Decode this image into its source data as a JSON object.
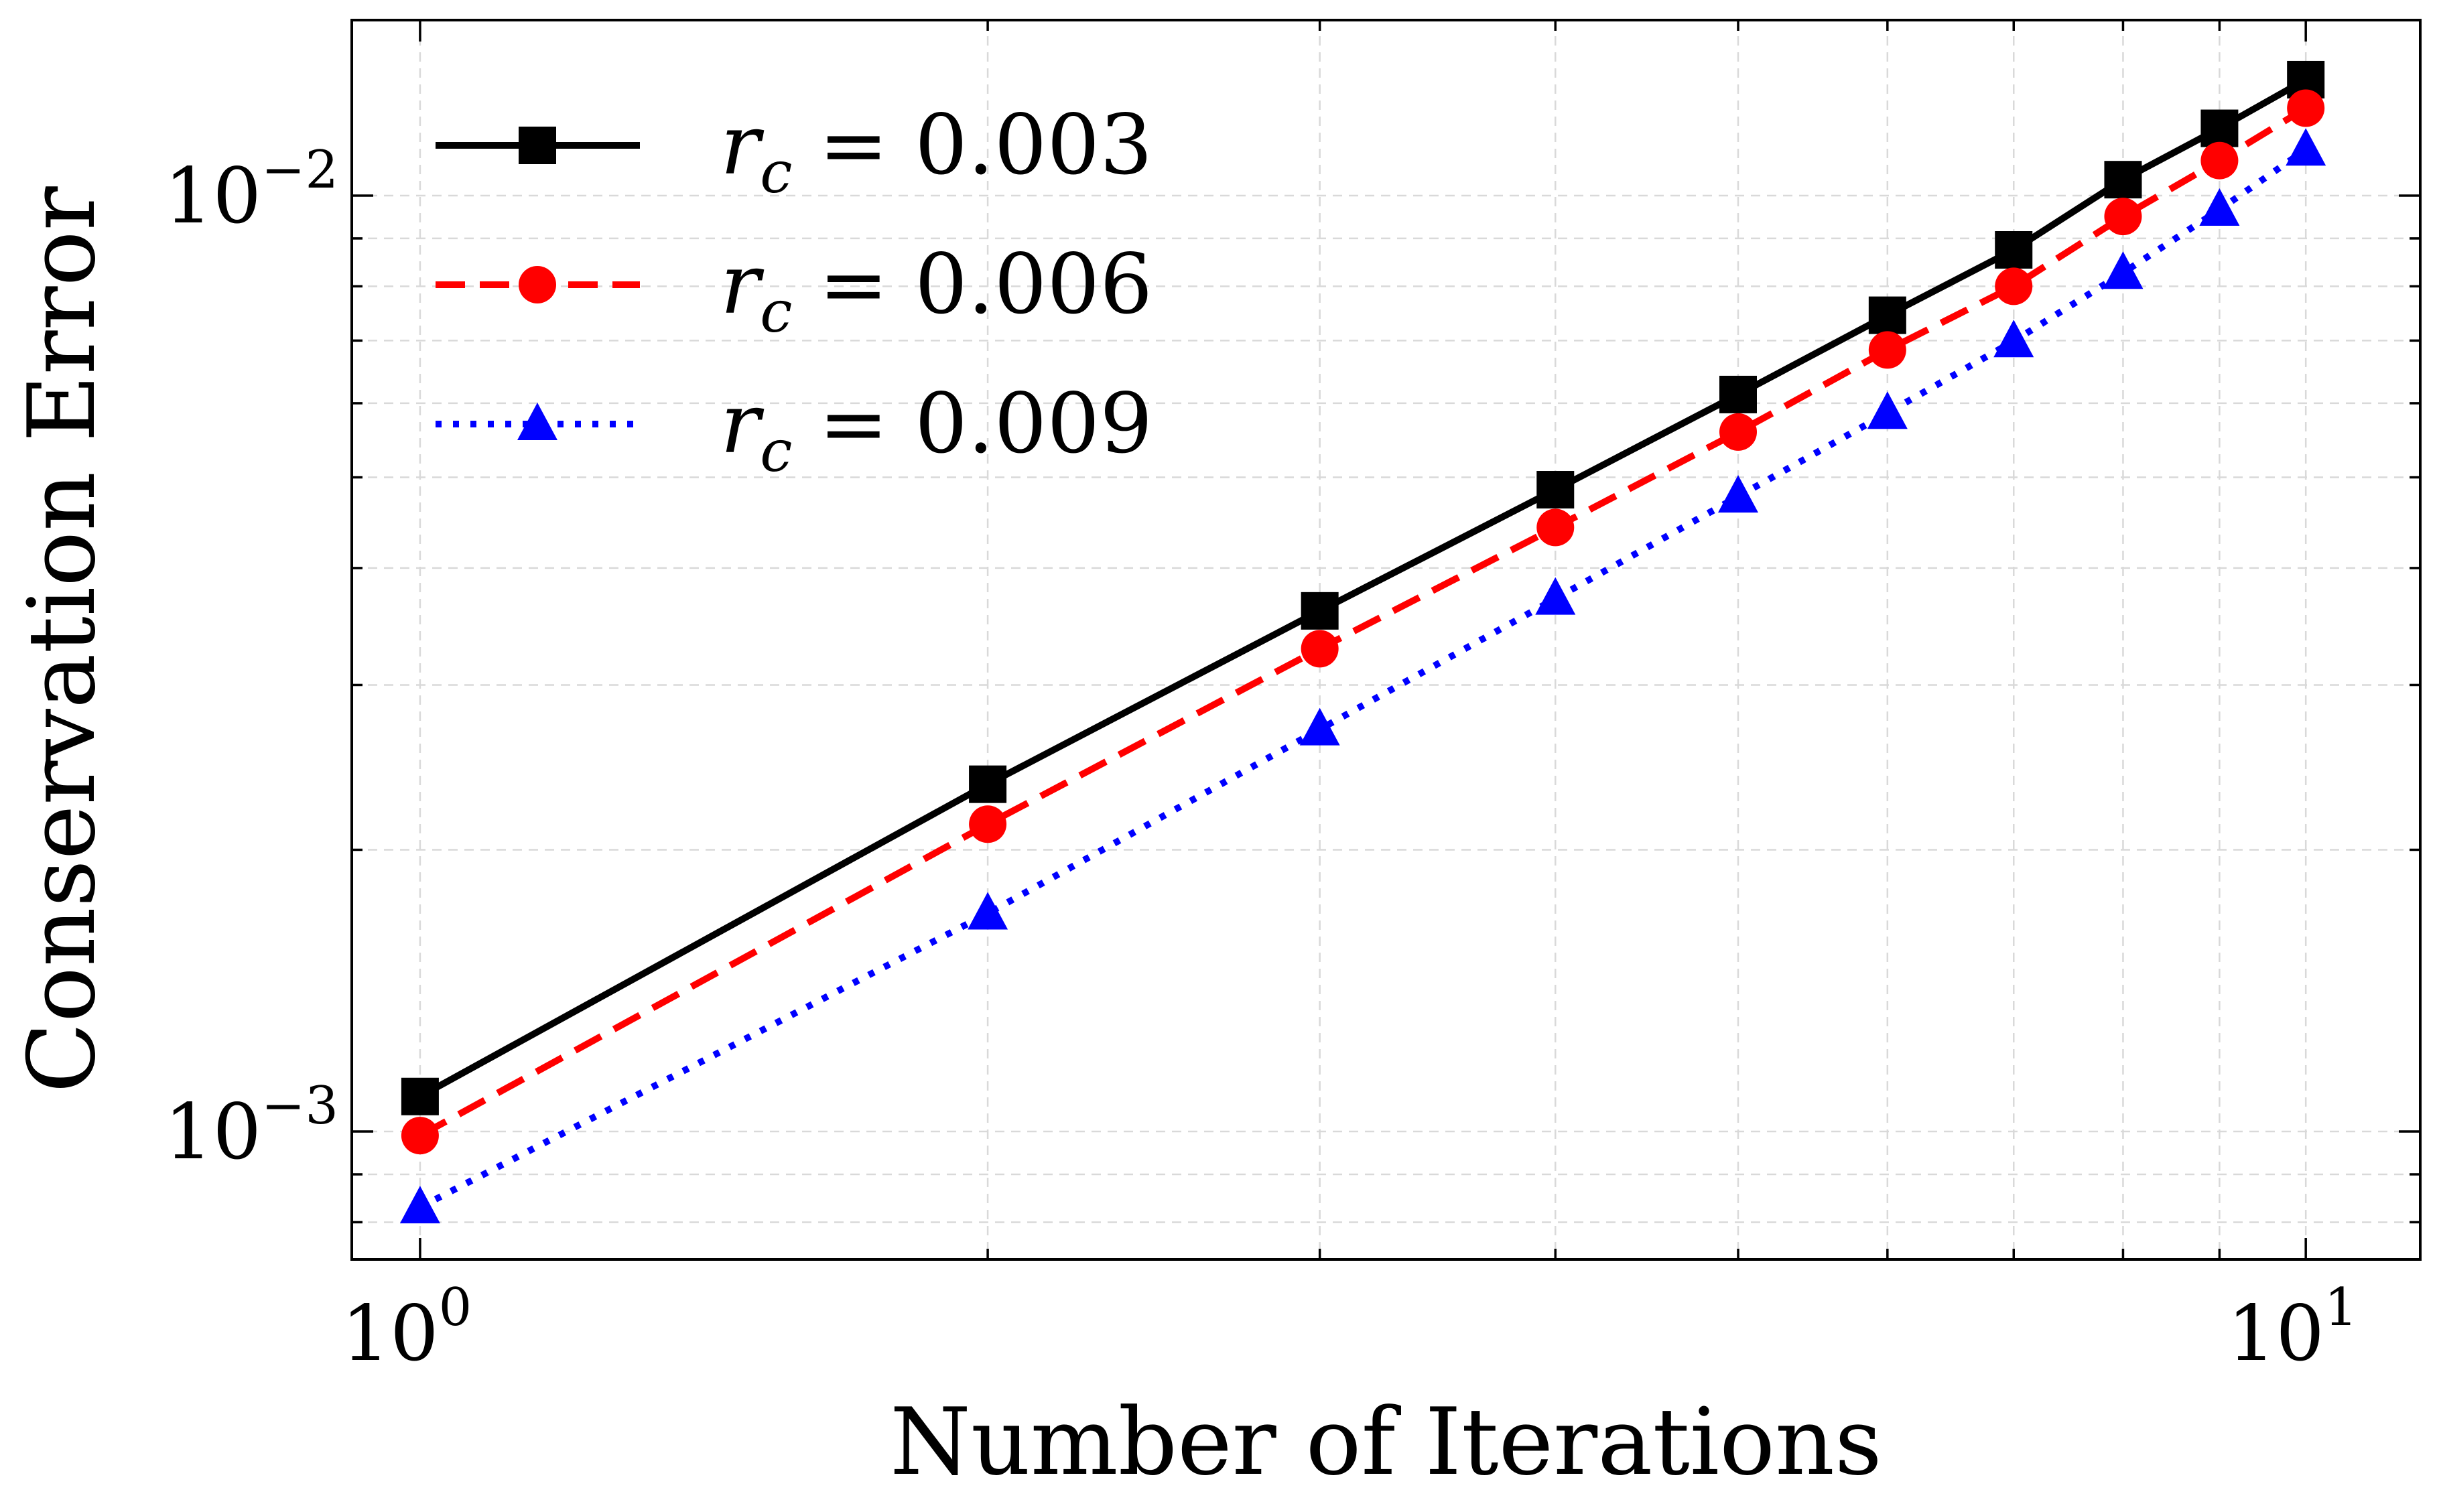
{
  "chart_data": {
    "type": "line",
    "xlabel": "Number of Iterations",
    "ylabel": "Conservation Error",
    "xscale": "log",
    "yscale": "log",
    "xlim": [
      0.92,
      11.5
    ],
    "ylim": [
      0.00073,
      0.0154
    ],
    "grid": true,
    "legend_position": "top-left",
    "x": [
      1,
      2,
      3,
      4,
      5,
      6,
      7,
      8,
      9,
      10
    ],
    "x_ticks": [
      {
        "value": 1,
        "base": "10",
        "exp": "0"
      },
      {
        "value": 10,
        "base": "10",
        "exp": "1"
      }
    ],
    "y_ticks": [
      {
        "value": 0.001,
        "base": "10",
        "exp": "−3"
      },
      {
        "value": 0.01,
        "base": "10",
        "exp": "−2"
      }
    ],
    "series": [
      {
        "name": "r_c = 0.003",
        "legend_var": "r",
        "legend_sub": "c",
        "legend_eq": " = 0.003",
        "color": "#000000",
        "marker": "square",
        "linestyle": "solid",
        "values": [
          0.00109,
          0.00235,
          0.0036,
          0.00485,
          0.00613,
          0.00745,
          0.00875,
          0.0104,
          0.0118,
          0.0133
        ]
      },
      {
        "name": "r_c = 0.006",
        "legend_var": "r",
        "legend_sub": "c",
        "legend_eq": " = 0.006",
        "color": "#ff0000",
        "marker": "circle",
        "linestyle": "dashed",
        "values": [
          0.00099,
          0.00213,
          0.00328,
          0.00442,
          0.00559,
          0.00684,
          0.008,
          0.0095,
          0.0109,
          0.0124
        ]
      },
      {
        "name": "r_c = 0.009",
        "legend_var": "r",
        "legend_sub": "c",
        "legend_eq": " = 0.009",
        "color": "#0000ff",
        "marker": "triangle",
        "linestyle": "dotted",
        "values": [
          0.00083,
          0.00171,
          0.00269,
          0.00371,
          0.00477,
          0.00586,
          0.00699,
          0.00827,
          0.00966,
          0.0112
        ]
      }
    ]
  }
}
